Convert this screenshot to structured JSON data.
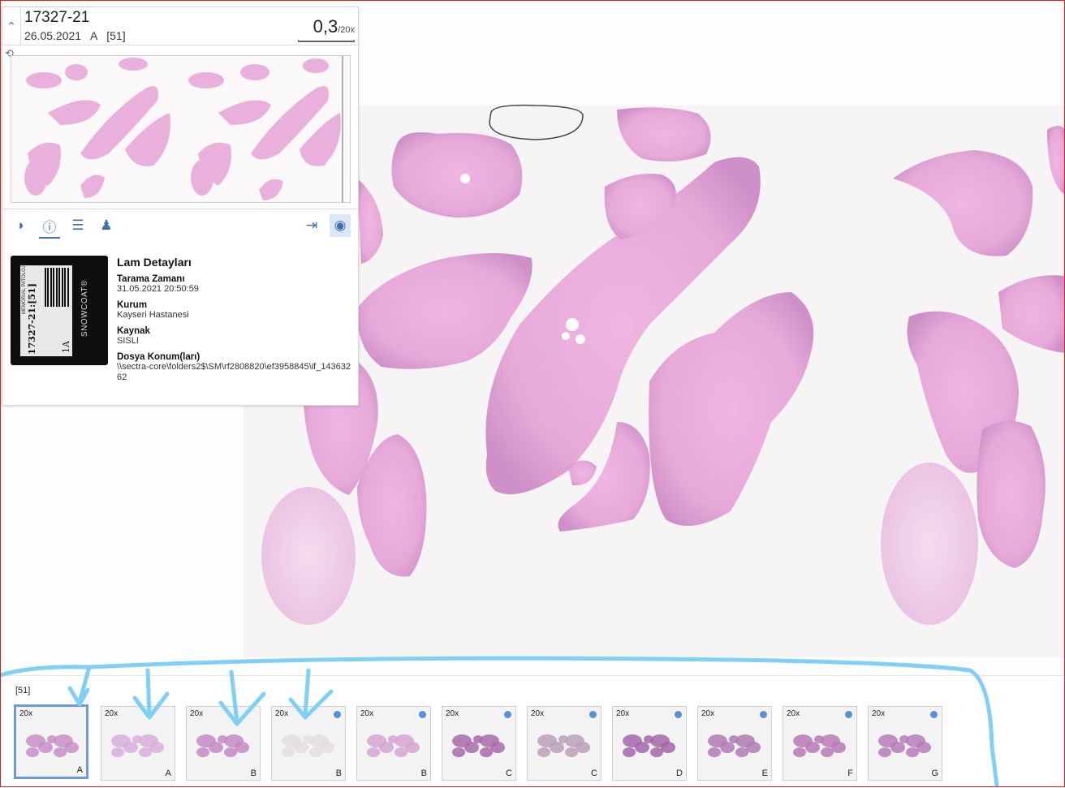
{
  "header": {
    "case_id": "17327-21",
    "date": "26.05.2021",
    "block": "A",
    "slide_count": "[51]",
    "zoom_value": "0,3",
    "zoom_max": "/20x"
  },
  "toolbar": {
    "left_icons": [
      "label-icon",
      "info-icon",
      "adjust-sliders-icon",
      "users-icon"
    ],
    "right_icons": [
      "sync-navigation-icon",
      "visibility-icon"
    ],
    "active": "info-icon"
  },
  "label_photo": {
    "code": "17327-21:[51]",
    "block": "1A",
    "header": "MEMORIAL PATOLOJI",
    "brand": "SNOWCOAT®"
  },
  "details": {
    "title": "Lam Detayları",
    "scan_time_label": "Tarama Zamanı",
    "scan_time_value": "31.05.2021 20:50:59",
    "institution_label": "Kurum",
    "institution_value": "Kayseri Hastanesi",
    "source_label": "Kaynak",
    "source_value": "SISLI",
    "file_location_label": "Dosya Konum(ları)",
    "file_location_value": "\\\\sectra-core\\folders2$\\SM\\rf2808820\\ef3958845\\if_14363262"
  },
  "strip": {
    "count": "[51]",
    "thumbnails": [
      {
        "mag": "20x",
        "letter": "A",
        "selected": true,
        "dot": false
      },
      {
        "mag": "20x",
        "letter": "A",
        "selected": false,
        "dot": false
      },
      {
        "mag": "20x",
        "letter": "B",
        "selected": false,
        "dot": false
      },
      {
        "mag": "20x",
        "letter": "B",
        "selected": false,
        "dot": true
      },
      {
        "mag": "20x",
        "letter": "B",
        "selected": false,
        "dot": true
      },
      {
        "mag": "20x",
        "letter": "C",
        "selected": false,
        "dot": true
      },
      {
        "mag": "20x",
        "letter": "C",
        "selected": false,
        "dot": true
      },
      {
        "mag": "20x",
        "letter": "D",
        "selected": false,
        "dot": true
      },
      {
        "mag": "20x",
        "letter": "E",
        "selected": false,
        "dot": true
      },
      {
        "mag": "20x",
        "letter": "F",
        "selected": false,
        "dot": true
      },
      {
        "mag": "20x",
        "letter": "G",
        "selected": false,
        "dot": true
      }
    ]
  },
  "colors": {
    "accent": "#3f6fb0",
    "tissue": "#e7a9d8",
    "tissue_dark": "#c88ac7",
    "selected_border": "#6e9bd6",
    "annotation": "#7fd0f5",
    "dot": "#5a8fdc",
    "frame": "#e21b1b"
  }
}
